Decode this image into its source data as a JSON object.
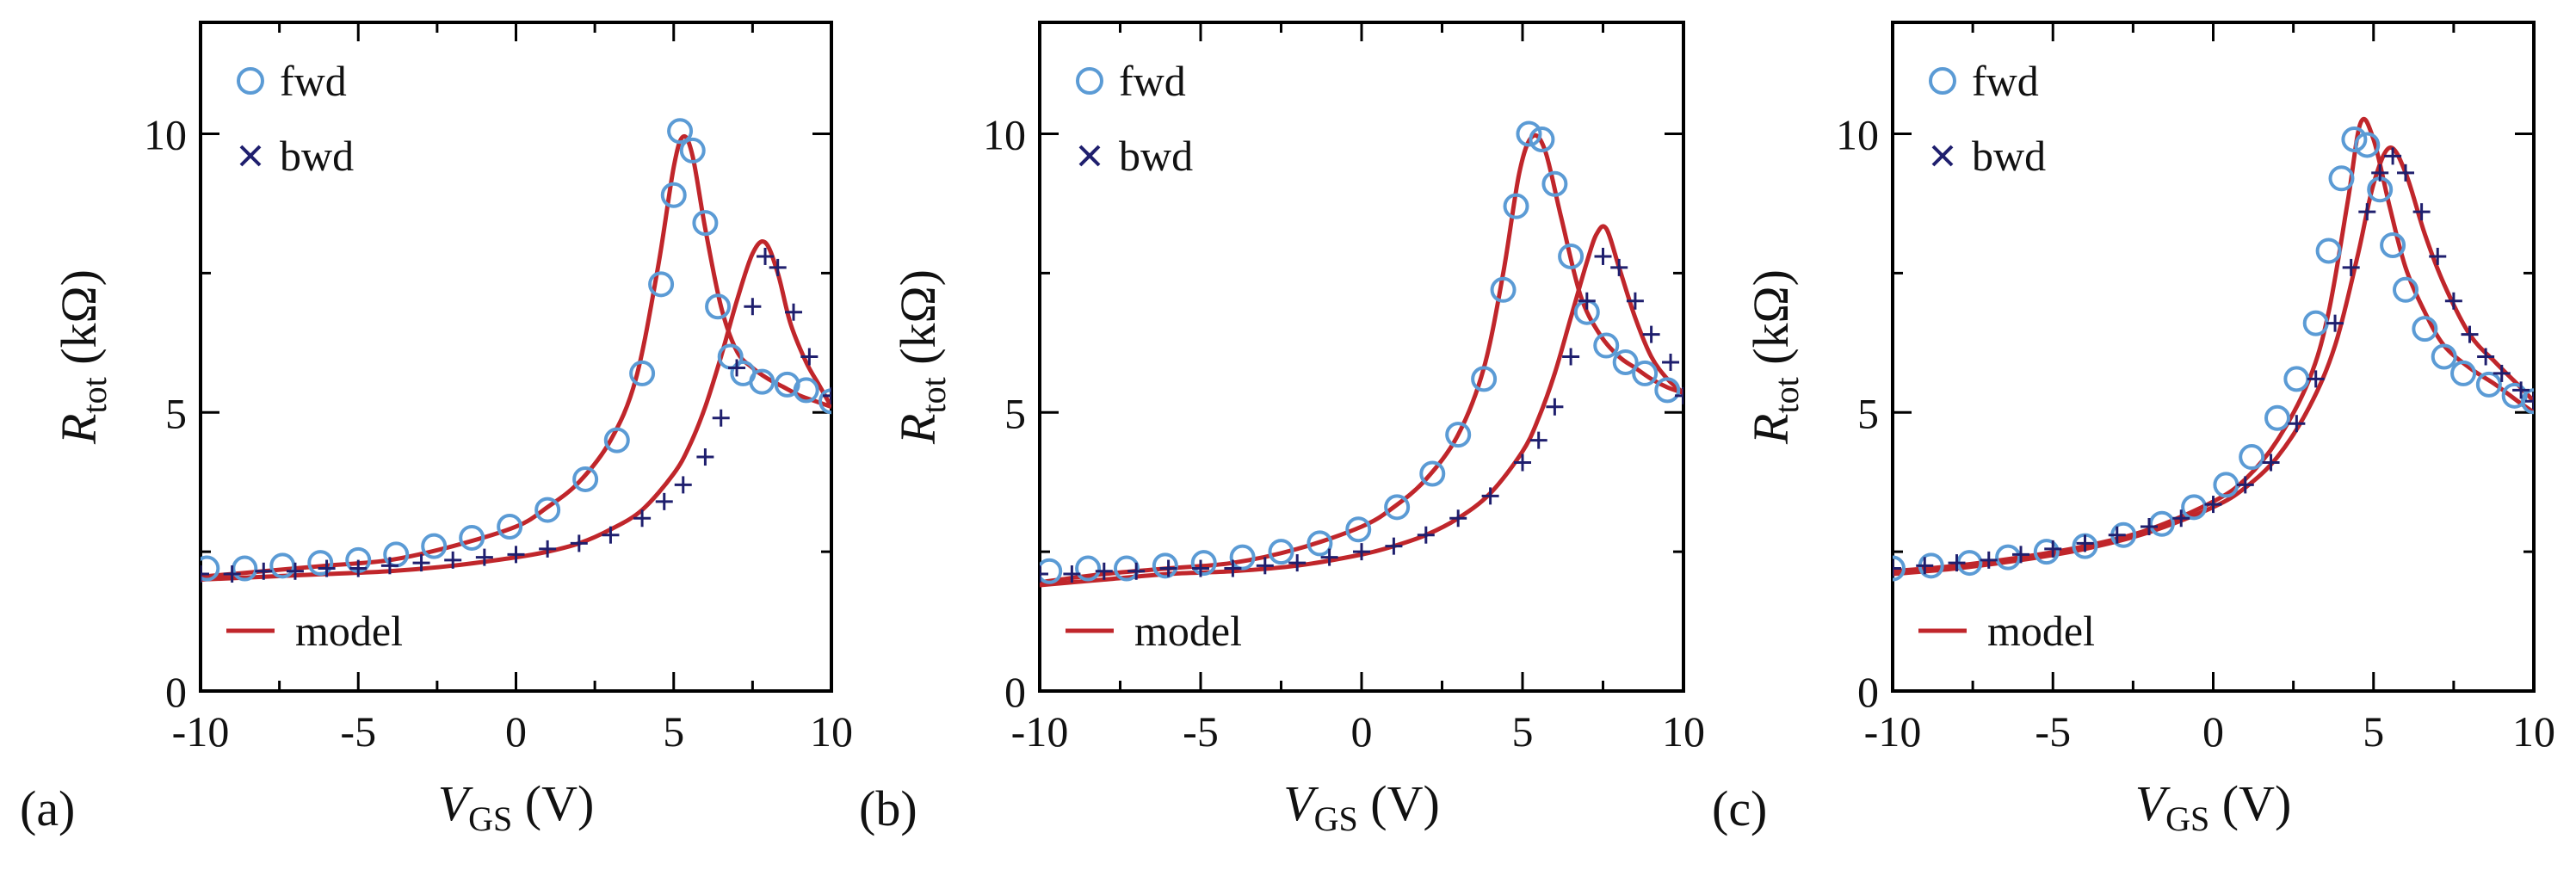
{
  "colors": {
    "fwd": "#5b9bd5",
    "bwd": "#1f1f6e",
    "model": "#c0262b",
    "axis": "#000000",
    "background": "#ffffff"
  },
  "chart_data": [
    {
      "type": "line",
      "panel_label": "(a)",
      "xlabel": {
        "main": "V",
        "sub": "GS",
        "unit": " (V)"
      },
      "ylabel": {
        "main": "R",
        "sub": "tot",
        "unit": " (kΩ)"
      },
      "xlim": [
        -10,
        10
      ],
      "ylim": [
        0,
        12
      ],
      "xticks": [
        -10,
        -5,
        0,
        5,
        10
      ],
      "yticks": [
        0,
        5,
        10
      ],
      "grid": false,
      "legend": [
        {
          "label": "fwd",
          "marker": "circle",
          "placement": "top-left"
        },
        {
          "label": "bwd",
          "marker": "cross",
          "placement": "top-left"
        },
        {
          "label": "model",
          "marker": "line",
          "placement": "bottom-left"
        }
      ],
      "series": [
        {
          "name": "fwd",
          "marker": "circle",
          "x": [
            -9.8,
            -8.6,
            -7.4,
            -6.2,
            -5,
            -3.8,
            -2.6,
            -1.4,
            -0.2,
            1,
            2.2,
            3.2,
            4,
            4.6,
            5,
            5.2,
            5.6,
            6,
            6.4,
            6.8,
            7.2,
            7.8,
            8.6,
            9.2,
            10
          ],
          "y": [
            2.2,
            2.2,
            2.25,
            2.3,
            2.35,
            2.45,
            2.6,
            2.75,
            2.95,
            3.25,
            3.8,
            4.5,
            5.7,
            7.3,
            8.9,
            10.05,
            9.7,
            8.4,
            6.9,
            6.0,
            5.7,
            5.55,
            5.5,
            5.4,
            5.2
          ]
        },
        {
          "name": "bwd",
          "marker": "cross",
          "x": [
            -10,
            -9,
            -8,
            -7,
            -6,
            -5,
            -4,
            -3,
            -2,
            -1,
            0,
            1,
            2,
            3,
            4,
            4.7,
            5.3,
            6,
            6.5,
            7,
            7.5,
            7.9,
            8.3,
            8.8,
            9.3,
            10
          ],
          "y": [
            2.1,
            2.1,
            2.15,
            2.15,
            2.2,
            2.2,
            2.25,
            2.3,
            2.35,
            2.4,
            2.45,
            2.55,
            2.65,
            2.8,
            3.1,
            3.4,
            3.7,
            4.2,
            4.9,
            5.8,
            6.9,
            7.8,
            7.6,
            6.8,
            6.0,
            5.3
          ]
        },
        {
          "name": "model",
          "marker": "line",
          "x": [
            -10,
            -8,
            -6,
            -4,
            -2,
            0,
            1,
            2,
            3,
            3.8,
            4.5,
            5,
            5.3,
            5.6,
            6,
            6.5,
            7,
            7.5,
            8,
            8.5,
            9,
            9.5,
            10
          ],
          "y": [
            2.05,
            2.15,
            2.25,
            2.35,
            2.6,
            2.95,
            3.3,
            3.75,
            4.5,
            5.6,
            7.6,
            9.4,
            9.95,
            9.6,
            8.3,
            6.9,
            6.1,
            5.8,
            5.6,
            5.45,
            5.3,
            5.2,
            5.1
          ]
        },
        {
          "name": "model",
          "marker": "line",
          "x": [
            -10,
            -8,
            -6,
            -4,
            -2,
            0,
            1,
            2,
            3,
            4,
            5,
            5.5,
            6,
            6.5,
            7,
            7.5,
            7.9,
            8.3,
            8.7,
            9.2,
            9.6,
            10
          ],
          "y": [
            2.0,
            2.05,
            2.1,
            2.15,
            2.25,
            2.4,
            2.5,
            2.65,
            2.9,
            3.25,
            3.9,
            4.4,
            5.1,
            6.0,
            7.0,
            7.85,
            8.05,
            7.5,
            6.6,
            5.9,
            5.5,
            5.1
          ]
        }
      ]
    },
    {
      "type": "line",
      "panel_label": "(b)",
      "xlabel": {
        "main": "V",
        "sub": "GS",
        "unit": " (V)"
      },
      "ylabel": {
        "main": "R",
        "sub": "tot",
        "unit": " (kΩ)"
      },
      "xlim": [
        -10,
        10
      ],
      "ylim": [
        0,
        12
      ],
      "xticks": [
        -10,
        -5,
        0,
        5,
        10
      ],
      "yticks": [
        0,
        5,
        10
      ],
      "grid": false,
      "legend": [
        {
          "label": "fwd",
          "marker": "circle",
          "placement": "top-left"
        },
        {
          "label": "bwd",
          "marker": "cross",
          "placement": "top-left"
        },
        {
          "label": "model",
          "marker": "line",
          "placement": "bottom-left"
        }
      ],
      "series": [
        {
          "name": "fwd",
          "marker": "circle",
          "x": [
            -9.7,
            -8.5,
            -7.3,
            -6.1,
            -4.9,
            -3.7,
            -2.5,
            -1.3,
            -0.1,
            1.1,
            2.2,
            3,
            3.8,
            4.4,
            4.8,
            5.2,
            5.6,
            6,
            6.5,
            7,
            7.6,
            8.2,
            8.8,
            9.5
          ],
          "y": [
            2.15,
            2.2,
            2.2,
            2.25,
            2.3,
            2.4,
            2.5,
            2.65,
            2.9,
            3.3,
            3.9,
            4.6,
            5.6,
            7.2,
            8.7,
            10.0,
            9.9,
            9.1,
            7.8,
            6.8,
            6.2,
            5.9,
            5.7,
            5.4
          ]
        },
        {
          "name": "bwd",
          "marker": "cross",
          "x": [
            -10,
            -9,
            -8,
            -7,
            -6,
            -5,
            -4,
            -3,
            -2,
            -1,
            0,
            1,
            2,
            3,
            4,
            5,
            5.5,
            6,
            6.5,
            7,
            7.5,
            8,
            8.5,
            9,
            9.6,
            10
          ],
          "y": [
            2.1,
            2.1,
            2.15,
            2.15,
            2.2,
            2.2,
            2.2,
            2.25,
            2.3,
            2.4,
            2.5,
            2.6,
            2.8,
            3.1,
            3.5,
            4.1,
            4.5,
            5.1,
            6.0,
            7.0,
            7.8,
            7.6,
            7.0,
            6.4,
            5.9,
            5.3
          ]
        },
        {
          "name": "model",
          "marker": "line",
          "x": [
            -10,
            -8,
            -6,
            -4,
            -2,
            0,
            1,
            2,
            3,
            3.8,
            4.4,
            4.9,
            5.3,
            5.7,
            6.2,
            6.8,
            7.4,
            8,
            8.5,
            9,
            9.5,
            10
          ],
          "y": [
            1.95,
            2.1,
            2.2,
            2.3,
            2.55,
            2.95,
            3.3,
            3.8,
            4.6,
            5.8,
            7.5,
            9.3,
            9.95,
            9.7,
            8.5,
            7.1,
            6.4,
            6.0,
            5.8,
            5.6,
            5.45,
            5.35
          ]
        },
        {
          "name": "model",
          "marker": "line",
          "x": [
            -10,
            -8,
            -6,
            -4,
            -2,
            0,
            1,
            2,
            3,
            4,
            5,
            5.5,
            6,
            6.5,
            7,
            7.3,
            7.6,
            8,
            8.5,
            9,
            9.5,
            10
          ],
          "y": [
            1.9,
            2.0,
            2.1,
            2.15,
            2.25,
            2.45,
            2.6,
            2.8,
            3.1,
            3.55,
            4.3,
            4.9,
            5.7,
            6.7,
            7.7,
            8.2,
            8.3,
            7.6,
            6.7,
            6.0,
            5.6,
            5.35
          ]
        }
      ]
    },
    {
      "type": "line",
      "panel_label": "(c)",
      "xlabel": {
        "main": "V",
        "sub": "GS",
        "unit": " (V)"
      },
      "ylabel": {
        "main": "R",
        "sub": "tot",
        "unit": " (kΩ)"
      },
      "xlim": [
        -10,
        10
      ],
      "ylim": [
        0,
        12
      ],
      "xticks": [
        -10,
        -5,
        0,
        5,
        10
      ],
      "yticks": [
        0,
        5,
        10
      ],
      "grid": false,
      "legend": [
        {
          "label": "fwd",
          "marker": "circle",
          "placement": "top-left"
        },
        {
          "label": "bwd",
          "marker": "cross",
          "placement": "top-left"
        },
        {
          "label": "model",
          "marker": "line",
          "placement": "bottom-left"
        }
      ],
      "series": [
        {
          "name": "fwd",
          "marker": "circle",
          "x": [
            -10,
            -8.8,
            -7.6,
            -6.4,
            -5.2,
            -4,
            -2.8,
            -1.6,
            -0.6,
            0.4,
            1.2,
            2,
            2.6,
            3.2,
            3.6,
            4,
            4.4,
            4.8,
            5.2,
            5.6,
            6,
            6.6,
            7.2,
            7.8,
            8.6,
            9.4,
            10
          ],
          "y": [
            2.2,
            2.25,
            2.3,
            2.4,
            2.5,
            2.6,
            2.8,
            3.0,
            3.3,
            3.7,
            4.2,
            4.9,
            5.6,
            6.6,
            7.9,
            9.2,
            9.9,
            9.8,
            9.0,
            8.0,
            7.2,
            6.5,
            6.0,
            5.7,
            5.5,
            5.3,
            5.2
          ]
        },
        {
          "name": "bwd",
          "marker": "cross",
          "x": [
            -10,
            -9,
            -8,
            -7,
            -6,
            -5,
            -4,
            -3,
            -2,
            -1,
            0,
            1,
            1.8,
            2.6,
            3.2,
            3.8,
            4.3,
            4.8,
            5.2,
            5.6,
            6,
            6.5,
            7,
            7.5,
            8,
            8.5,
            9,
            9.6,
            10
          ],
          "y": [
            2.2,
            2.25,
            2.3,
            2.35,
            2.45,
            2.55,
            2.65,
            2.8,
            2.95,
            3.1,
            3.35,
            3.7,
            4.1,
            4.8,
            5.6,
            6.6,
            7.6,
            8.6,
            9.3,
            9.6,
            9.3,
            8.6,
            7.8,
            7.0,
            6.4,
            6.0,
            5.7,
            5.4,
            5.2
          ]
        },
        {
          "name": "model",
          "marker": "line",
          "x": [
            -10,
            -8,
            -6,
            -4,
            -2,
            0,
            1,
            2,
            3,
            3.6,
            4.2,
            4.6,
            5,
            5.5,
            6,
            6.6,
            7.2,
            8,
            8.8,
            9.5,
            10
          ],
          "y": [
            2.15,
            2.25,
            2.4,
            2.6,
            2.9,
            3.4,
            3.8,
            4.5,
            5.6,
            6.8,
            8.8,
            10.2,
            9.9,
            8.7,
            7.6,
            6.8,
            6.2,
            5.8,
            5.5,
            5.2,
            5.0
          ]
        },
        {
          "name": "model",
          "marker": "line",
          "x": [
            -10,
            -8,
            -6,
            -4,
            -2,
            0,
            1,
            2,
            3,
            3.8,
            4.5,
            5,
            5.5,
            6,
            6.6,
            7.2,
            8,
            8.8,
            9.5,
            10
          ],
          "y": [
            2.1,
            2.2,
            2.35,
            2.55,
            2.85,
            3.3,
            3.65,
            4.2,
            5.1,
            6.2,
            7.8,
            9.1,
            9.75,
            9.3,
            8.2,
            7.3,
            6.4,
            5.9,
            5.5,
            5.2
          ]
        }
      ]
    }
  ]
}
